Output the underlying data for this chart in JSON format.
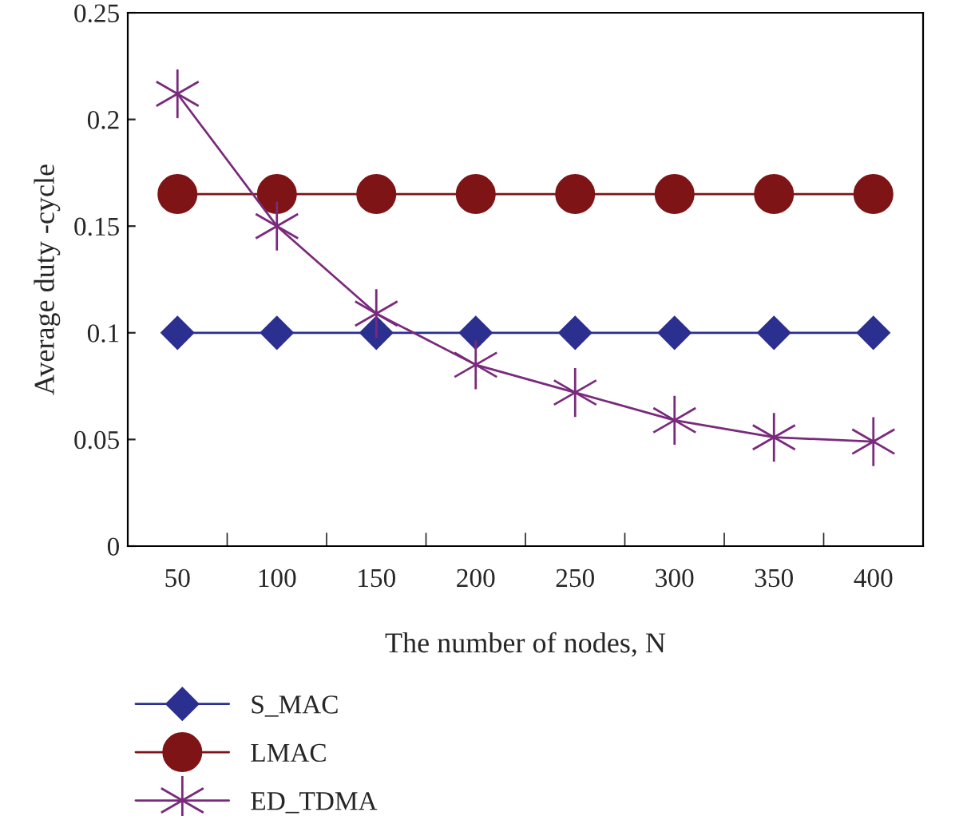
{
  "chart_data": {
    "type": "line",
    "xlabel": "The number of nodes, N",
    "ylabel": "Average duty -cycle",
    "categories": [
      "50",
      "100",
      "150",
      "200",
      "250",
      "300",
      "350",
      "400"
    ],
    "series": [
      {
        "name": "S_MAC",
        "color": "#2b2f8f",
        "marker": "diamond",
        "values": [
          0.1,
          0.1,
          0.1,
          0.1,
          0.1,
          0.1,
          0.1,
          0.1
        ]
      },
      {
        "name": "LMAC",
        "color": "#7f1416",
        "marker": "circle",
        "values": [
          0.165,
          0.165,
          0.165,
          0.165,
          0.165,
          0.165,
          0.165,
          0.165
        ]
      },
      {
        "name": "ED_TDMA",
        "color": "#7a2a7c",
        "marker": "cross",
        "values": [
          0.212,
          0.15,
          0.109,
          0.085,
          0.072,
          0.059,
          0.051,
          0.049
        ]
      }
    ],
    "ylim": [
      0,
      0.25
    ],
    "yticks": [
      0,
      0.05,
      0.1,
      0.15,
      0.2,
      0.25
    ],
    "grid": false,
    "legend": "bottom left",
    "line_style": "solid"
  }
}
